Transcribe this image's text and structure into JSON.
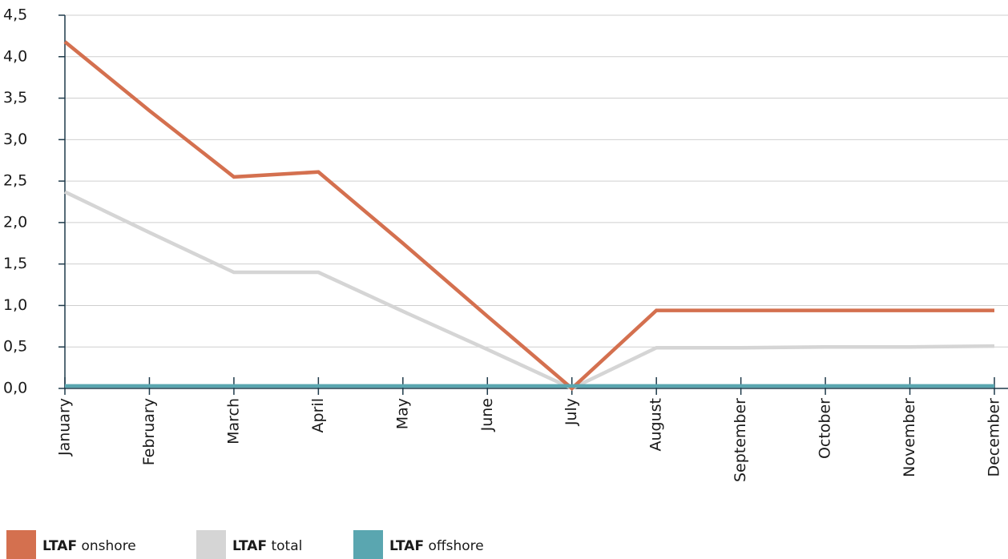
{
  "chart_data": {
    "type": "line",
    "categories": [
      "January",
      "February",
      "March",
      "April",
      "May",
      "June",
      "July",
      "August",
      "September",
      "October",
      "November",
      "December"
    ],
    "series": [
      {
        "name": "LTAF onshore",
        "color": "#d4704f",
        "values": [
          4.18,
          3.35,
          2.55,
          2.61,
          1.75,
          0.87,
          0,
          0.94,
          0.94,
          0.94,
          0.94,
          0.94
        ]
      },
      {
        "name": "LTAF total",
        "color": "#d5d5d5",
        "values": [
          2.37,
          1.88,
          1.4,
          1.4,
          0.93,
          0.47,
          0,
          0.49,
          0.49,
          0.5,
          0.5,
          0.51
        ]
      },
      {
        "name": "LTAF offshore",
        "color": "#5aa6b0",
        "values": [
          0.03,
          0.03,
          0.03,
          0.03,
          0.03,
          0.03,
          0.03,
          0.03,
          0.03,
          0.03,
          0.03,
          0.03
        ]
      }
    ],
    "ylim": [
      0,
      4.5
    ],
    "yticks": [
      {
        "value": 0,
        "label": "0,0"
      },
      {
        "value": 0.5,
        "label": "0,5"
      },
      {
        "value": 1,
        "label": "1,0"
      },
      {
        "value": 1.5,
        "label": "1,5"
      },
      {
        "value": 2,
        "label": "2,0"
      },
      {
        "value": 2.5,
        "label": "2,5"
      },
      {
        "value": 3,
        "label": "3,0"
      },
      {
        "value": 3.5,
        "label": "3,5"
      },
      {
        "value": 4,
        "label": "4,0"
      },
      {
        "value": 4.5,
        "label": "4,5"
      }
    ],
    "grid": true
  }
}
